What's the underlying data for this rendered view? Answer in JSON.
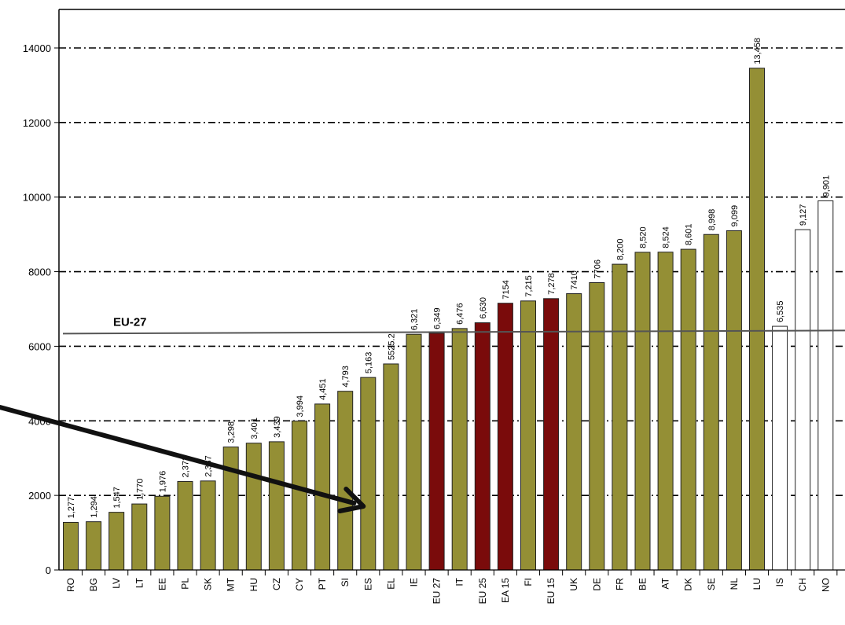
{
  "chart_data": {
    "type": "bar",
    "categories": [
      "RO",
      "BG",
      "LV",
      "LT",
      "EE",
      "PL",
      "SK",
      "MT",
      "HU",
      "CZ",
      "CY",
      "PT",
      "SI",
      "ES",
      "EL",
      "IE",
      "EU 27",
      "IT",
      "EU 25",
      "EA 15",
      "FI",
      "EU 15",
      "UK",
      "DE",
      "FR",
      "BE",
      "AT",
      "DK",
      "SE",
      "NL",
      "LU",
      "IS",
      "CH",
      "NO"
    ],
    "values": [
      1277,
      1294,
      1547,
      1770,
      1976,
      2373,
      2387,
      3298,
      3401,
      3439,
      3994,
      4451,
      4793,
      5163,
      5525.2,
      6321,
      6349,
      6476,
      6630,
      7154,
      7215,
      7278,
      7410,
      7706,
      8200,
      8520,
      8524,
      8601,
      8998,
      9099,
      13458,
      6535,
      9127,
      9901
    ],
    "value_labels": [
      "1,277",
      "1,294",
      "1,547",
      "1,770",
      "1,976",
      "2,373",
      "2,387",
      "3,298",
      "3,401",
      "3,439",
      "3,994",
      "4,451",
      "4,793",
      "5,163",
      "5525.2",
      "6,321",
      "6,349",
      "6,476",
      "6,630",
      "7154",
      "7,215",
      "7,278",
      "7410",
      "7706",
      "8,200",
      "8,520",
      "8,524",
      "8,601",
      "8,998",
      "9,099",
      "13,458",
      "6,535",
      "9,127",
      "9,901"
    ],
    "bar_groups": [
      "member",
      "member",
      "member",
      "member",
      "member",
      "member",
      "member",
      "member",
      "member",
      "member",
      "member",
      "member",
      "member",
      "member",
      "member",
      "member",
      "aggregate",
      "member",
      "aggregate",
      "aggregate",
      "member",
      "aggregate",
      "member",
      "member",
      "member",
      "member",
      "member",
      "member",
      "member",
      "member",
      "member",
      "non-eu",
      "non-eu",
      "non-eu"
    ],
    "colors": {
      "member": "#948f35",
      "aggregate": "#7a0b0b",
      "non-eu": "#ffffff",
      "outline": "#222222",
      "arrow": "#111111"
    },
    "yticks": [
      "0",
      "2000",
      "4000",
      "6000",
      "8000",
      "10000",
      "12000",
      "14000"
    ],
    "ylim": [
      0,
      15000
    ],
    "grid": true,
    "reference_line": {
      "value": 6349,
      "label": "EU-27"
    },
    "annotation": "arrow pointing to ES bar",
    "title": "",
    "xlabel": "",
    "ylabel": ""
  }
}
